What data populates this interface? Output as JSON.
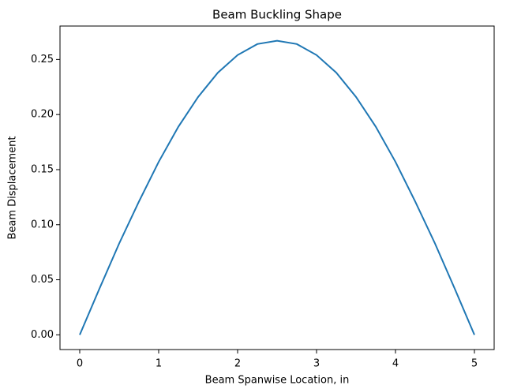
{
  "chart_data": {
    "type": "line",
    "title": "Beam Buckling Shape",
    "x_label": "Beam Spanwise Location, in",
    "y_label": "Beam Displacement",
    "x": [
      0,
      0.25,
      0.5,
      0.75,
      1,
      1.25,
      1.5,
      1.75,
      2,
      2.25,
      2.5,
      2.75,
      3,
      3.25,
      3.5,
      3.75,
      4,
      4.25,
      4.5,
      4.75,
      5
    ],
    "series": [
      {
        "color": "#1f77b4",
        "values": [
          0,
          0.042,
          0.083,
          0.121,
          0.157,
          0.189,
          0.216,
          0.238,
          0.254,
          0.264,
          0.267,
          0.264,
          0.254,
          0.238,
          0.216,
          0.189,
          0.157,
          0.121,
          0.083,
          0.042,
          0
        ]
      }
    ],
    "xlim": [
      -0.25,
      5.25
    ],
    "ylim": [
      -0.01335,
      0.28035
    ],
    "xticks": [
      0,
      1,
      2,
      3,
      4,
      5
    ],
    "yticks": [
      {
        "value": 0,
        "label": "0.00"
      },
      {
        "value": 0.05,
        "label": "0.05"
      },
      {
        "value": 0.1,
        "label": "0.10"
      },
      {
        "value": 0.15,
        "label": "0.15"
      },
      {
        "value": 0.2,
        "label": "0.20"
      },
      {
        "value": 0.25,
        "label": "0.25"
      }
    ]
  }
}
